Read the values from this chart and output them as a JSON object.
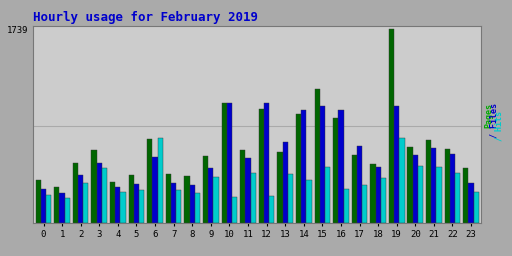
{
  "title": "Hourly usage for February 2019",
  "title_color": "#0000cc",
  "title_fontsize": 9,
  "plot_bg_color": "#cccccc",
  "outer_bg": "#aaaaaa",
  "ymax": 1739,
  "hours": [
    0,
    1,
    2,
    3,
    4,
    5,
    6,
    7,
    8,
    9,
    10,
    11,
    12,
    13,
    14,
    15,
    16,
    17,
    18,
    19,
    20,
    21,
    22,
    23
  ],
  "pages": [
    380,
    320,
    540,
    650,
    370,
    430,
    750,
    440,
    420,
    600,
    1080,
    650,
    1020,
    640,
    980,
    1200,
    940,
    610,
    530,
    1739,
    680,
    740,
    660,
    490
  ],
  "files": [
    300,
    270,
    430,
    540,
    320,
    350,
    590,
    360,
    340,
    490,
    1080,
    580,
    1080,
    730,
    1010,
    1050,
    1010,
    690,
    500,
    1050,
    610,
    670,
    620,
    360
  ],
  "hits": [
    250,
    220,
    360,
    490,
    280,
    290,
    760,
    290,
    270,
    410,
    230,
    450,
    240,
    440,
    380,
    500,
    300,
    340,
    400,
    760,
    510,
    500,
    450,
    280
  ],
  "pages_color": "#006600",
  "files_color": "#0000cc",
  "hits_color": "#00cccc",
  "grid_color": "#aaaaaa",
  "grid_y_vals": [
    869.5
  ],
  "ylabel_right_pages": "Pages",
  "ylabel_right_files": " / Files",
  "ylabel_right_hits": " / Hits",
  "ylabel_color_pages": "#00aa00",
  "ylabel_color_files": "#0000cc",
  "ylabel_color_hits": "#00cccc"
}
